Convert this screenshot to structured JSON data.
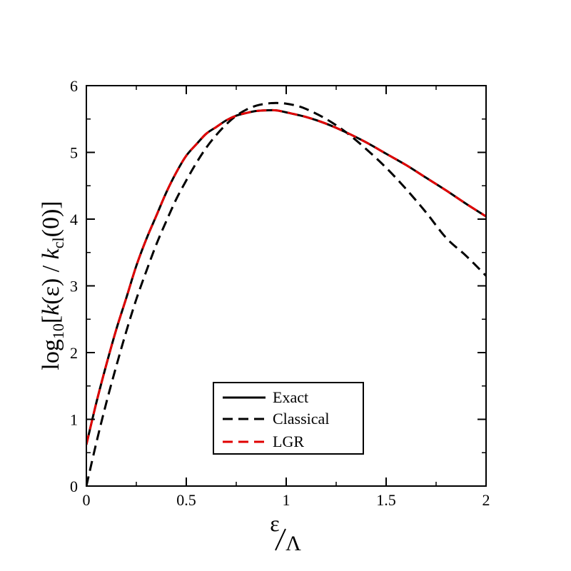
{
  "chart_data": {
    "type": "line",
    "title": "",
    "xlabel": "ε/Λ",
    "xlabel_numerator": "ε",
    "xlabel_denominator": "Λ",
    "ylabel": "log10[k(ε) / kcl(0)]",
    "ylabel_parts": {
      "func": "log",
      "func_sub": "10",
      "open": "[",
      "k1": "k",
      "arg1": "(ε)",
      "sep": " / ",
      "k2": "k",
      "k2_sub": "cl",
      "arg2": "(0)",
      "close": "]"
    },
    "xlim": [
      0,
      2
    ],
    "ylim": [
      0,
      6
    ],
    "xticks": [
      0,
      0.5,
      1,
      1.5,
      2
    ],
    "xtick_labels": [
      "0",
      "0.5",
      "1",
      "1.5",
      "2"
    ],
    "yticks": [
      0,
      1,
      2,
      3,
      4,
      5,
      6
    ],
    "ytick_labels": [
      "0",
      "1",
      "2",
      "3",
      "4",
      "5",
      "6"
    ],
    "legend_position": "lower-center",
    "series": [
      {
        "name": "Exact",
        "color": "#000000",
        "dash": "solid",
        "x": [
          0,
          0.05,
          0.1,
          0.15,
          0.2,
          0.25,
          0.3,
          0.35,
          0.4,
          0.45,
          0.5,
          0.55,
          0.6,
          0.65,
          0.7,
          0.75,
          0.8,
          0.85,
          0.9,
          0.95,
          1.0,
          1.1,
          1.2,
          1.3,
          1.4,
          1.5,
          1.6,
          1.7,
          1.8,
          1.9,
          2.0
        ],
        "y": [
          0.62,
          1.25,
          1.82,
          2.35,
          2.82,
          3.3,
          3.7,
          4.05,
          4.4,
          4.7,
          4.95,
          5.12,
          5.28,
          5.38,
          5.48,
          5.55,
          5.59,
          5.62,
          5.63,
          5.63,
          5.6,
          5.53,
          5.43,
          5.3,
          5.15,
          4.98,
          4.81,
          4.62,
          4.43,
          4.23,
          4.04
        ]
      },
      {
        "name": "Classical",
        "color": "#000000",
        "dash": "dashed",
        "x": [
          0,
          0.05,
          0.1,
          0.15,
          0.2,
          0.25,
          0.3,
          0.35,
          0.4,
          0.45,
          0.5,
          0.55,
          0.6,
          0.65,
          0.7,
          0.75,
          0.8,
          0.85,
          0.9,
          0.95,
          1.0,
          1.05,
          1.1,
          1.2,
          1.3,
          1.4,
          1.5,
          1.6,
          1.7,
          1.8,
          1.9,
          2.0
        ],
        "y": [
          0.0,
          0.65,
          1.25,
          1.8,
          2.32,
          2.8,
          3.22,
          3.62,
          3.97,
          4.3,
          4.58,
          4.84,
          5.07,
          5.26,
          5.42,
          5.55,
          5.64,
          5.7,
          5.73,
          5.74,
          5.73,
          5.7,
          5.65,
          5.5,
          5.3,
          5.05,
          4.77,
          4.45,
          4.1,
          3.72,
          3.45,
          3.15
        ]
      },
      {
        "name": "LGR",
        "color": "#e00000",
        "dash": "dashed",
        "x": [
          0,
          0.05,
          0.1,
          0.15,
          0.2,
          0.25,
          0.3,
          0.35,
          0.4,
          0.45,
          0.5,
          0.55,
          0.6,
          0.65,
          0.7,
          0.75,
          0.8,
          0.85,
          0.9,
          0.95,
          1.0,
          1.1,
          1.2,
          1.3,
          1.4,
          1.5,
          1.6,
          1.7,
          1.8,
          1.9,
          2.0
        ],
        "y": [
          0.62,
          1.25,
          1.82,
          2.35,
          2.82,
          3.3,
          3.7,
          4.05,
          4.4,
          4.7,
          4.95,
          5.12,
          5.28,
          5.38,
          5.48,
          5.55,
          5.59,
          5.62,
          5.63,
          5.63,
          5.6,
          5.53,
          5.43,
          5.3,
          5.15,
          4.98,
          4.81,
          4.62,
          4.43,
          4.23,
          4.04
        ]
      }
    ]
  }
}
